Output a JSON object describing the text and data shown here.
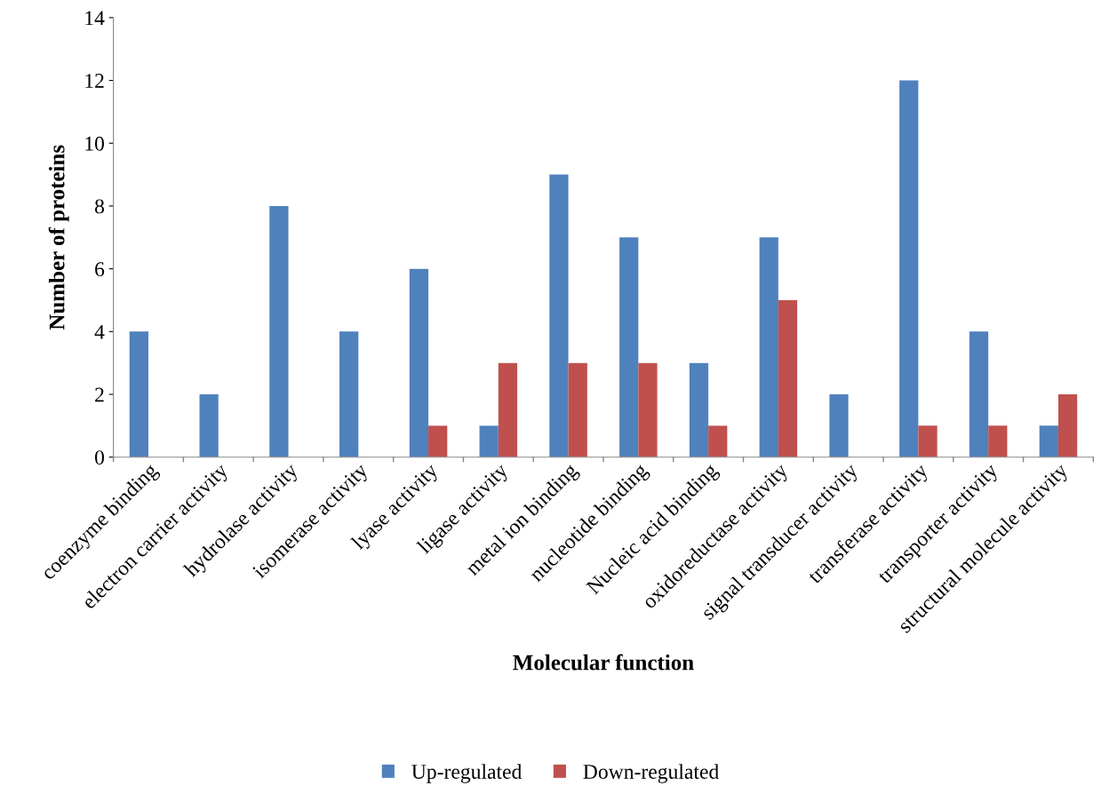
{
  "chart_data": {
    "type": "bar",
    "xlabel": "Molecular function",
    "ylabel": "Number of proteins",
    "categories": [
      "coenzyme binding",
      "electron carrier activity",
      "hydrolase activity",
      "isomerase activity",
      "lyase activity",
      "ligase activity",
      "metal ion binding",
      "nucleotide binding",
      "Nucleic acid binding",
      "oxidoreductase activity",
      "signal transducer activity",
      "transferase activity",
      "transporter activity",
      "structural molecule activity"
    ],
    "series": [
      {
        "name": "Up-regulated",
        "color": "#4f81bd",
        "values": [
          4,
          2,
          8,
          4,
          6,
          1,
          9,
          7,
          3,
          7,
          2,
          12,
          4,
          1
        ]
      },
      {
        "name": "Down-regulated",
        "color": "#c0504d",
        "values": [
          null,
          null,
          null,
          null,
          1,
          3,
          3,
          3,
          1,
          5,
          null,
          1,
          1,
          2
        ]
      }
    ],
    "ylim": [
      0,
      14
    ],
    "yticks": [
      0,
      2,
      4,
      6,
      8,
      10,
      12,
      14
    ],
    "grid": false,
    "legend": "bottom"
  }
}
